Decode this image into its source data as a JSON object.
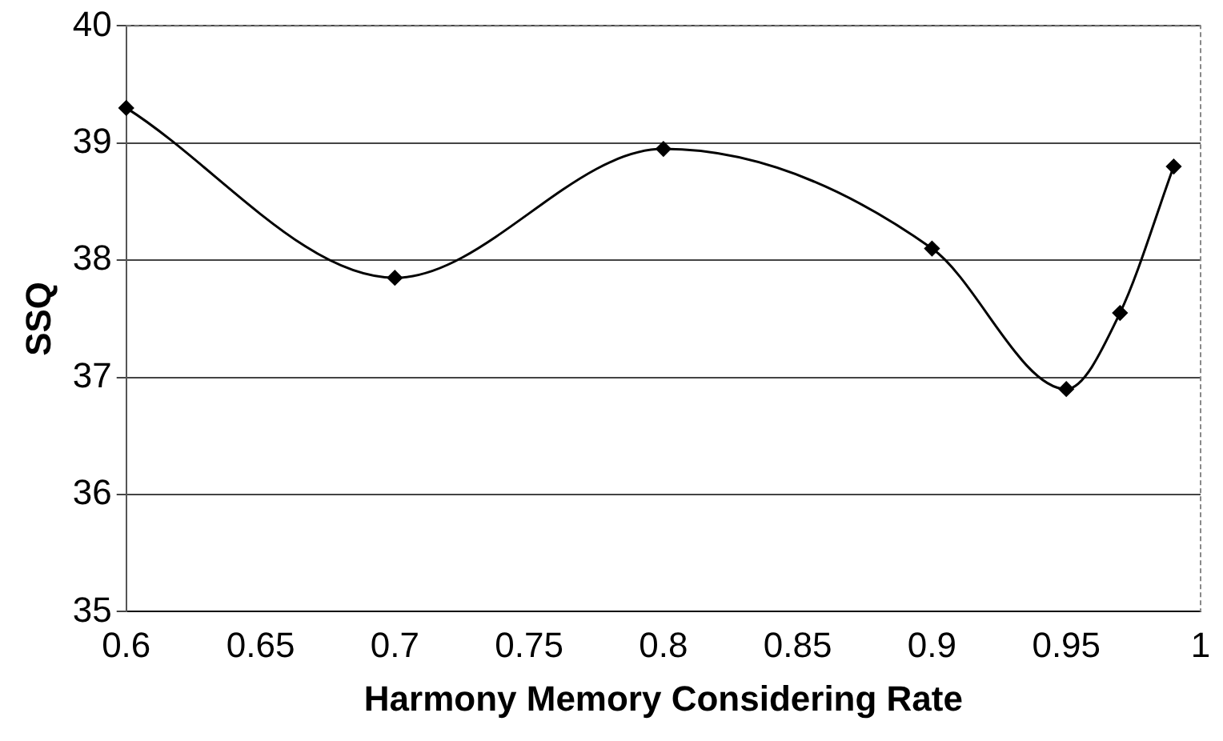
{
  "chart_data": {
    "type": "line",
    "xlabel": "Harmony Memory Considering Rate",
    "ylabel": "SSQ",
    "x": [
      0.6,
      0.7,
      0.8,
      0.9,
      0.95,
      0.97,
      0.99
    ],
    "series": [
      {
        "color": "#000000",
        "values": [
          39.3,
          37.85,
          38.95,
          38.1,
          36.9,
          37.55,
          38.8
        ]
      }
    ],
    "xlim": [
      0.6,
      1
    ],
    "xticks": [
      0.6,
      0.65,
      0.7,
      0.75,
      0.8,
      0.85,
      0.9,
      0.95,
      1
    ],
    "ylim": [
      35,
      40
    ],
    "yticks": [
      35,
      36,
      37,
      38,
      39,
      40
    ],
    "grid": "y",
    "legend": false,
    "marker": "diamond",
    "line_style": "solid"
  }
}
